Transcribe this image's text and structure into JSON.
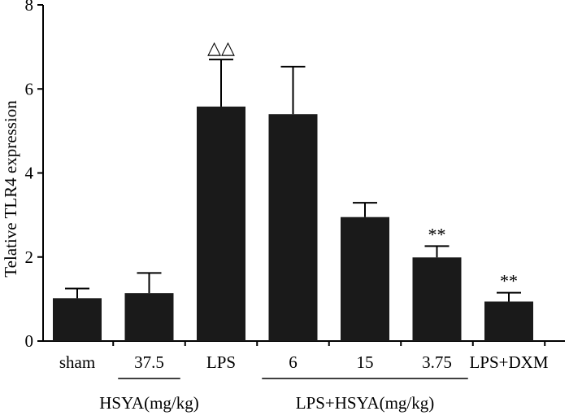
{
  "chart_data": {
    "type": "bar",
    "title": "",
    "xlabel": "",
    "ylabel": "Telative TLR4 expression",
    "ylim": [
      0,
      8
    ],
    "yticks": [
      0,
      2,
      4,
      6,
      8
    ],
    "grid": false,
    "categories": [
      "sham",
      "37.5",
      "LPS",
      "6",
      "15",
      "3.75",
      "LPS+DXM"
    ],
    "values": [
      1.02,
      1.14,
      5.58,
      5.4,
      2.95,
      1.99,
      0.94
    ],
    "errors": [
      0.23,
      0.48,
      1.12,
      1.13,
      0.34,
      0.27,
      0.21
    ],
    "annotations": [
      "",
      "",
      "△△",
      "",
      "",
      "**",
      "**"
    ],
    "groups": [
      {
        "label": "HSYA(mg/kg)",
        "start": 1,
        "end": 1
      },
      {
        "label": "LPS+HSYA(mg/kg)",
        "start": 3,
        "end": 5
      }
    ],
    "bar_color": "#1a1a1a"
  }
}
